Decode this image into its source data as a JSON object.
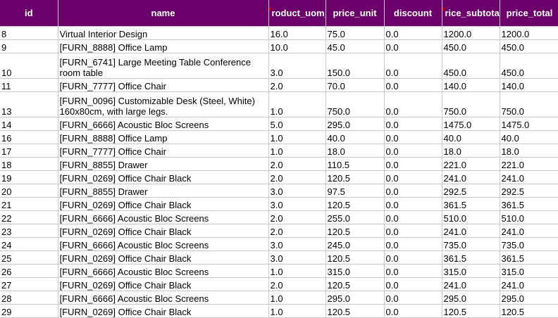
{
  "columns": [
    "id",
    "name",
    "roduct_uom_q",
    "price_unit",
    "discount",
    "rice_subtota",
    "price_total"
  ],
  "rows": [
    [
      "8",
      "Virtual Interior Design",
      "16.0",
      "75.0",
      "0.0",
      "1200.0",
      "1200.0"
    ],
    [
      "9",
      "[FURN_8888] Office Lamp",
      "10.0",
      "45.0",
      "0.0",
      "450.0",
      "450.0"
    ],
    [
      "10",
      "[FURN_6741] Large Meeting Table Conference room table",
      "3.0",
      "150.0",
      "0.0",
      "450.0",
      "450.0"
    ],
    [
      "11",
      "[FURN_7777] Office Chair",
      "2.0",
      "70.0",
      "0.0",
      "140.0",
      "140.0"
    ],
    [
      "13",
      "[FURN_0096] Customizable Desk (Steel, White) 160x80cm, with large legs.",
      "1.0",
      "750.0",
      "0.0",
      "750.0",
      "750.0"
    ],
    [
      "14",
      "[FURN_6666] Acoustic Bloc Screens",
      "5.0",
      "295.0",
      "0.0",
      "1475.0",
      "1475.0"
    ],
    [
      "16",
      "[FURN_8888] Office Lamp",
      "1.0",
      "40.0",
      "0.0",
      "40.0",
      "40.0"
    ],
    [
      "17",
      "[FURN_7777] Office Chair",
      "1.0",
      "18.0",
      "0.0",
      "18.0",
      "18.0"
    ],
    [
      "18",
      "[FURN_8855] Drawer",
      "2.0",
      "110.5",
      "0.0",
      "221.0",
      "221.0"
    ],
    [
      "19",
      "[FURN_0269] Office Chair Black",
      "2.0",
      "120.5",
      "0.0",
      "241.0",
      "241.0"
    ],
    [
      "20",
      "[FURN_8855] Drawer",
      "3.0",
      "97.5",
      "0.0",
      "292.5",
      "292.5"
    ],
    [
      "21",
      "[FURN_0269] Office Chair Black",
      "3.0",
      "120.5",
      "0.0",
      "361.5",
      "361.5"
    ],
    [
      "22",
      "[FURN_6666] Acoustic Bloc Screens",
      "2.0",
      "255.0",
      "0.0",
      "510.0",
      "510.0"
    ],
    [
      "23",
      "[FURN_0269] Office Chair Black",
      "2.0",
      "120.5",
      "0.0",
      "241.0",
      "241.0"
    ],
    [
      "24",
      "[FURN_6666] Acoustic Bloc Screens",
      "3.0",
      "245.0",
      "0.0",
      "735.0",
      "735.0"
    ],
    [
      "25",
      "[FURN_0269] Office Chair Black",
      "3.0",
      "120.5",
      "0.0",
      "361.5",
      "361.5"
    ],
    [
      "26",
      "[FURN_6666] Acoustic Bloc Screens",
      "1.0",
      "315.0",
      "0.0",
      "315.0",
      "315.0"
    ],
    [
      "27",
      "[FURN_0269] Office Chair Black",
      "2.0",
      "120.5",
      "0.0",
      "241.0",
      "241.0"
    ],
    [
      "28",
      "[FURN_6666] Acoustic Bloc Screens",
      "1.0",
      "295.0",
      "0.0",
      "295.0",
      "295.0"
    ],
    [
      "29",
      "[FURN_0269] Office Chair Black",
      "1.0",
      "120.5",
      "0.0",
      "120.5",
      "120.5"
    ]
  ],
  "tall_rows": [
    2,
    4
  ],
  "colors": {
    "header_bg": "#6b006b",
    "header_text": "#ffffff",
    "grid": "#c8c8c8",
    "comment_marker": "#d00000"
  }
}
